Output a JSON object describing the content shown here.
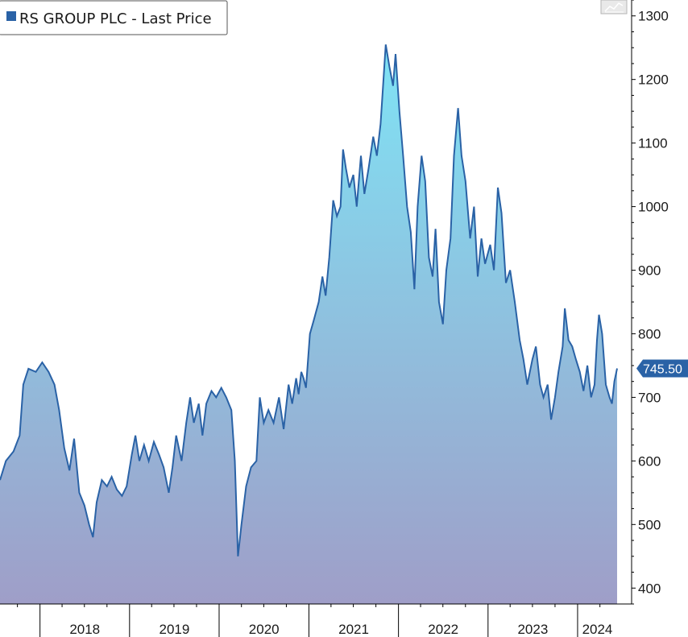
{
  "legend": {
    "label": "RS GROUP PLC - Last Price",
    "swatch_color": "#2a62a6"
  },
  "last_price_label": "745.50",
  "toolbar": {
    "icon": "chart-line-icon"
  },
  "colors": {
    "line": "#2a62a6",
    "fill_top": "#7fe3f5",
    "fill_bottom": "#9f9ec8",
    "last_bg": "#2a62a6",
    "axis": "#000000",
    "gridline": "#e2e2e2"
  },
  "chart_data": {
    "type": "area",
    "title": "RS GROUP PLC - Last Price",
    "xlabel": "",
    "ylabel": "",
    "ylim": [
      375,
      1325
    ],
    "yticks": [
      400,
      500,
      600,
      700,
      800,
      900,
      1000,
      1100,
      1200,
      1300
    ],
    "x_range": [
      "2017-07-22",
      "2024-06-10"
    ],
    "year_ticks": [
      "2018",
      "2019",
      "2020",
      "2021",
      "2022",
      "2023",
      "2024"
    ],
    "last_value": 745.5,
    "legend_position": "top-left",
    "grid": false,
    "series": [
      {
        "name": "RS GROUP PLC - Last Price",
        "points": [
          [
            "2017-07-22",
            570
          ],
          [
            "2017-08-15",
            600
          ],
          [
            "2017-09-15",
            615
          ],
          [
            "2017-10-10",
            640
          ],
          [
            "2017-10-25",
            720
          ],
          [
            "2017-11-15",
            745
          ],
          [
            "2017-12-15",
            740
          ],
          [
            "2018-01-10",
            755
          ],
          [
            "2018-02-05",
            740
          ],
          [
            "2018-03-01",
            720
          ],
          [
            "2018-03-20",
            680
          ],
          [
            "2018-04-10",
            620
          ],
          [
            "2018-05-01",
            585
          ],
          [
            "2018-05-20",
            635
          ],
          [
            "2018-06-10",
            550
          ],
          [
            "2018-07-01",
            530
          ],
          [
            "2018-07-20",
            500
          ],
          [
            "2018-08-05",
            480
          ],
          [
            "2018-08-20",
            535
          ],
          [
            "2018-09-10",
            570
          ],
          [
            "2018-10-01",
            560
          ],
          [
            "2018-10-20",
            575
          ],
          [
            "2018-11-10",
            555
          ],
          [
            "2018-12-01",
            545
          ],
          [
            "2018-12-20",
            560
          ],
          [
            "2019-01-10",
            610
          ],
          [
            "2019-01-25",
            640
          ],
          [
            "2019-02-10",
            600
          ],
          [
            "2019-03-01",
            625
          ],
          [
            "2019-03-20",
            600
          ],
          [
            "2019-04-10",
            630
          ],
          [
            "2019-05-01",
            610
          ],
          [
            "2019-05-20",
            590
          ],
          [
            "2019-06-10",
            550
          ],
          [
            "2019-06-25",
            590
          ],
          [
            "2019-07-10",
            640
          ],
          [
            "2019-08-01",
            600
          ],
          [
            "2019-08-20",
            660
          ],
          [
            "2019-09-05",
            700
          ],
          [
            "2019-09-20",
            660
          ],
          [
            "2019-10-10",
            690
          ],
          [
            "2019-10-25",
            640
          ],
          [
            "2019-11-10",
            690
          ],
          [
            "2019-12-01",
            710
          ],
          [
            "2019-12-20",
            700
          ],
          [
            "2020-01-10",
            715
          ],
          [
            "2020-01-30",
            700
          ],
          [
            "2020-02-20",
            680
          ],
          [
            "2020-03-05",
            600
          ],
          [
            "2020-03-18",
            450
          ],
          [
            "2020-04-01",
            500
          ],
          [
            "2020-04-20",
            560
          ],
          [
            "2020-05-10",
            590
          ],
          [
            "2020-06-01",
            600
          ],
          [
            "2020-06-15",
            700
          ],
          [
            "2020-07-01",
            660
          ],
          [
            "2020-07-20",
            680
          ],
          [
            "2020-08-10",
            660
          ],
          [
            "2020-09-01",
            700
          ],
          [
            "2020-09-20",
            650
          ],
          [
            "2020-10-10",
            720
          ],
          [
            "2020-10-25",
            690
          ],
          [
            "2020-11-10",
            730
          ],
          [
            "2020-11-20",
            705
          ],
          [
            "2020-12-01",
            740
          ],
          [
            "2020-12-10",
            730
          ],
          [
            "2020-12-20",
            715
          ],
          [
            "2021-01-05",
            800
          ],
          [
            "2021-01-20",
            820
          ],
          [
            "2021-02-10",
            850
          ],
          [
            "2021-02-25",
            890
          ],
          [
            "2021-03-10",
            860
          ],
          [
            "2021-03-25",
            920
          ],
          [
            "2021-04-10",
            1010
          ],
          [
            "2021-04-25",
            985
          ],
          [
            "2021-05-10",
            1000
          ],
          [
            "2021-05-20",
            1090
          ],
          [
            "2021-06-01",
            1060
          ],
          [
            "2021-06-15",
            1030
          ],
          [
            "2021-07-01",
            1050
          ],
          [
            "2021-07-15",
            1000
          ],
          [
            "2021-08-01",
            1080
          ],
          [
            "2021-08-15",
            1020
          ],
          [
            "2021-09-01",
            1060
          ],
          [
            "2021-09-20",
            1110
          ],
          [
            "2021-10-05",
            1080
          ],
          [
            "2021-10-20",
            1130
          ],
          [
            "2021-11-01",
            1200
          ],
          [
            "2021-11-10",
            1255
          ],
          [
            "2021-11-25",
            1220
          ],
          [
            "2021-12-10",
            1190
          ],
          [
            "2021-12-20",
            1240
          ],
          [
            "2022-01-05",
            1150
          ],
          [
            "2022-01-20",
            1080
          ],
          [
            "2022-02-05",
            1000
          ],
          [
            "2022-02-20",
            960
          ],
          [
            "2022-03-07",
            870
          ],
          [
            "2022-03-20",
            1000
          ],
          [
            "2022-04-05",
            1080
          ],
          [
            "2022-04-20",
            1040
          ],
          [
            "2022-05-05",
            920
          ],
          [
            "2022-05-20",
            890
          ],
          [
            "2022-06-01",
            965
          ],
          [
            "2022-06-15",
            850
          ],
          [
            "2022-07-01",
            815
          ],
          [
            "2022-07-15",
            900
          ],
          [
            "2022-08-01",
            950
          ],
          [
            "2022-08-15",
            1080
          ],
          [
            "2022-09-01",
            1155
          ],
          [
            "2022-09-15",
            1080
          ],
          [
            "2022-10-01",
            1040
          ],
          [
            "2022-10-20",
            950
          ],
          [
            "2022-11-05",
            1000
          ],
          [
            "2022-11-20",
            890
          ],
          [
            "2022-12-05",
            950
          ],
          [
            "2022-12-20",
            910
          ],
          [
            "2023-01-10",
            940
          ],
          [
            "2023-01-25",
            900
          ],
          [
            "2023-02-10",
            1030
          ],
          [
            "2023-02-25",
            990
          ],
          [
            "2023-03-15",
            880
          ],
          [
            "2023-04-01",
            900
          ],
          [
            "2023-04-20",
            850
          ],
          [
            "2023-05-10",
            790
          ],
          [
            "2023-05-25",
            760
          ],
          [
            "2023-06-10",
            720
          ],
          [
            "2023-07-01",
            760
          ],
          [
            "2023-07-15",
            780
          ],
          [
            "2023-08-01",
            720
          ],
          [
            "2023-08-15",
            700
          ],
          [
            "2023-09-01",
            720
          ],
          [
            "2023-09-15",
            665
          ],
          [
            "2023-10-01",
            700
          ],
          [
            "2023-10-15",
            740
          ],
          [
            "2023-11-01",
            780
          ],
          [
            "2023-11-10",
            840
          ],
          [
            "2023-11-25",
            790
          ],
          [
            "2023-12-10",
            780
          ],
          [
            "2023-12-25",
            760
          ],
          [
            "2024-01-10",
            740
          ],
          [
            "2024-01-25",
            710
          ],
          [
            "2024-02-10",
            750
          ],
          [
            "2024-02-25",
            700
          ],
          [
            "2024-03-10",
            720
          ],
          [
            "2024-03-20",
            790
          ],
          [
            "2024-03-28",
            830
          ],
          [
            "2024-04-10",
            800
          ],
          [
            "2024-04-25",
            720
          ],
          [
            "2024-05-10",
            700
          ],
          [
            "2024-05-20",
            690
          ],
          [
            "2024-05-30",
            725
          ],
          [
            "2024-06-10",
            745.5
          ]
        ]
      }
    ]
  }
}
